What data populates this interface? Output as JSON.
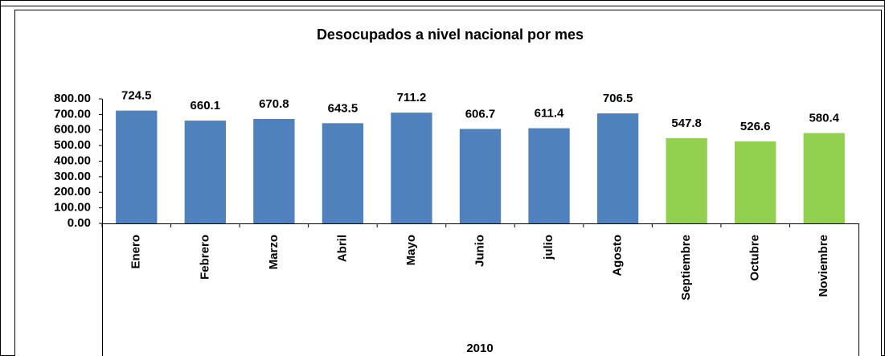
{
  "chart_data": {
    "type": "bar",
    "title": "Desocupados a nivel nacional por mes",
    "x_group_label": "2010",
    "categories": [
      "Enero",
      "Febrero",
      "Marzo",
      "Abril",
      "Mayo",
      "Junio",
      "julio",
      "Agosto",
      "Septiembre",
      "Octubre",
      "Noviembre"
    ],
    "values": [
      724.5,
      660.1,
      670.8,
      643.5,
      711.2,
      606.7,
      611.4,
      706.5,
      547.8,
      526.6,
      580.4
    ],
    "colors": [
      "#4f81bd",
      "#4f81bd",
      "#4f81bd",
      "#4f81bd",
      "#4f81bd",
      "#4f81bd",
      "#4f81bd",
      "#4f81bd",
      "#92d050",
      "#92d050",
      "#92d050"
    ],
    "ylim": [
      0,
      800
    ],
    "yticks": [
      {
        "value": 0,
        "label": "0.00"
      },
      {
        "value": 100,
        "label": "100.00"
      },
      {
        "value": 200,
        "label": "200.00"
      },
      {
        "value": 300,
        "label": "300.00"
      },
      {
        "value": 400,
        "label": "400.00"
      },
      {
        "value": 500,
        "label": "500.00"
      },
      {
        "value": 600,
        "label": "600.00"
      },
      {
        "value": 700,
        "label": "700.00"
      },
      {
        "value": 800,
        "label": "800.00"
      }
    ],
    "grid": false
  }
}
